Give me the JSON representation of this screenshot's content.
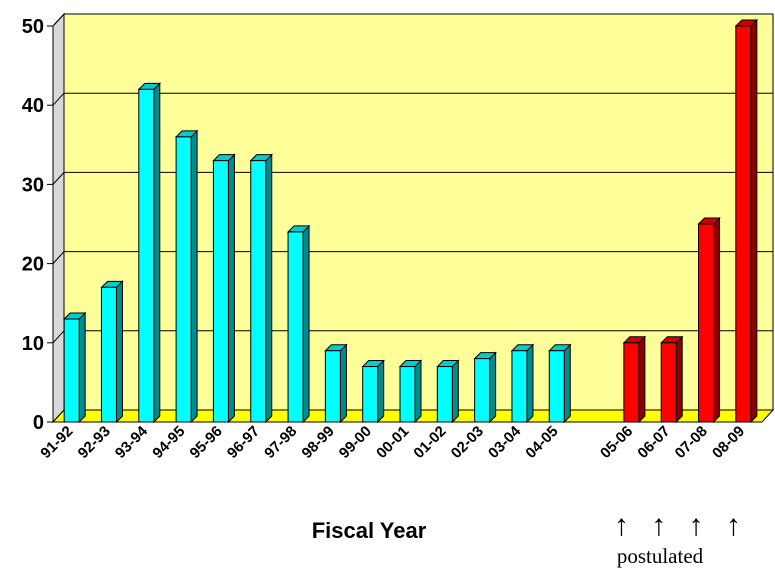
{
  "chart_data": {
    "type": "bar",
    "categories": [
      "91-92",
      "92-93",
      "93-94",
      "94-95",
      "95-96",
      "96-97",
      "97-98",
      "98-99",
      "99-00",
      "00-01",
      "01-02",
      "02-03",
      "03-04",
      "04-05",
      "",
      "05-06",
      "06-07",
      "07-08",
      "08-09"
    ],
    "values": [
      13,
      17,
      42,
      36,
      33,
      33,
      24,
      9,
      7,
      7,
      7,
      8,
      9,
      9,
      null,
      10,
      10,
      25,
      50
    ],
    "bar_colors": [
      "#00ffff",
      "#00ffff",
      "#00ffff",
      "#00ffff",
      "#00ffff",
      "#00ffff",
      "#00ffff",
      "#00ffff",
      "#00ffff",
      "#00ffff",
      "#00ffff",
      "#00ffff",
      "#00ffff",
      "#00ffff",
      null,
      "#ff0000",
      "#ff0000",
      "#ff0000",
      "#ff0000"
    ],
    "title": "",
    "xlabel": "Fiscal Year",
    "ylabel": "",
    "ylim": [
      0,
      50
    ],
    "yticks": [
      "0",
      "10",
      "20",
      "30",
      "40",
      "50"
    ],
    "grid": true,
    "plot_background": "#ffff99",
    "floor_color": "#ffff00",
    "annotation": {
      "text": "postulated",
      "arrow_glyph": "↑",
      "applies_to": [
        "05-06",
        "06-07",
        "07-08",
        "08-09"
      ]
    }
  }
}
